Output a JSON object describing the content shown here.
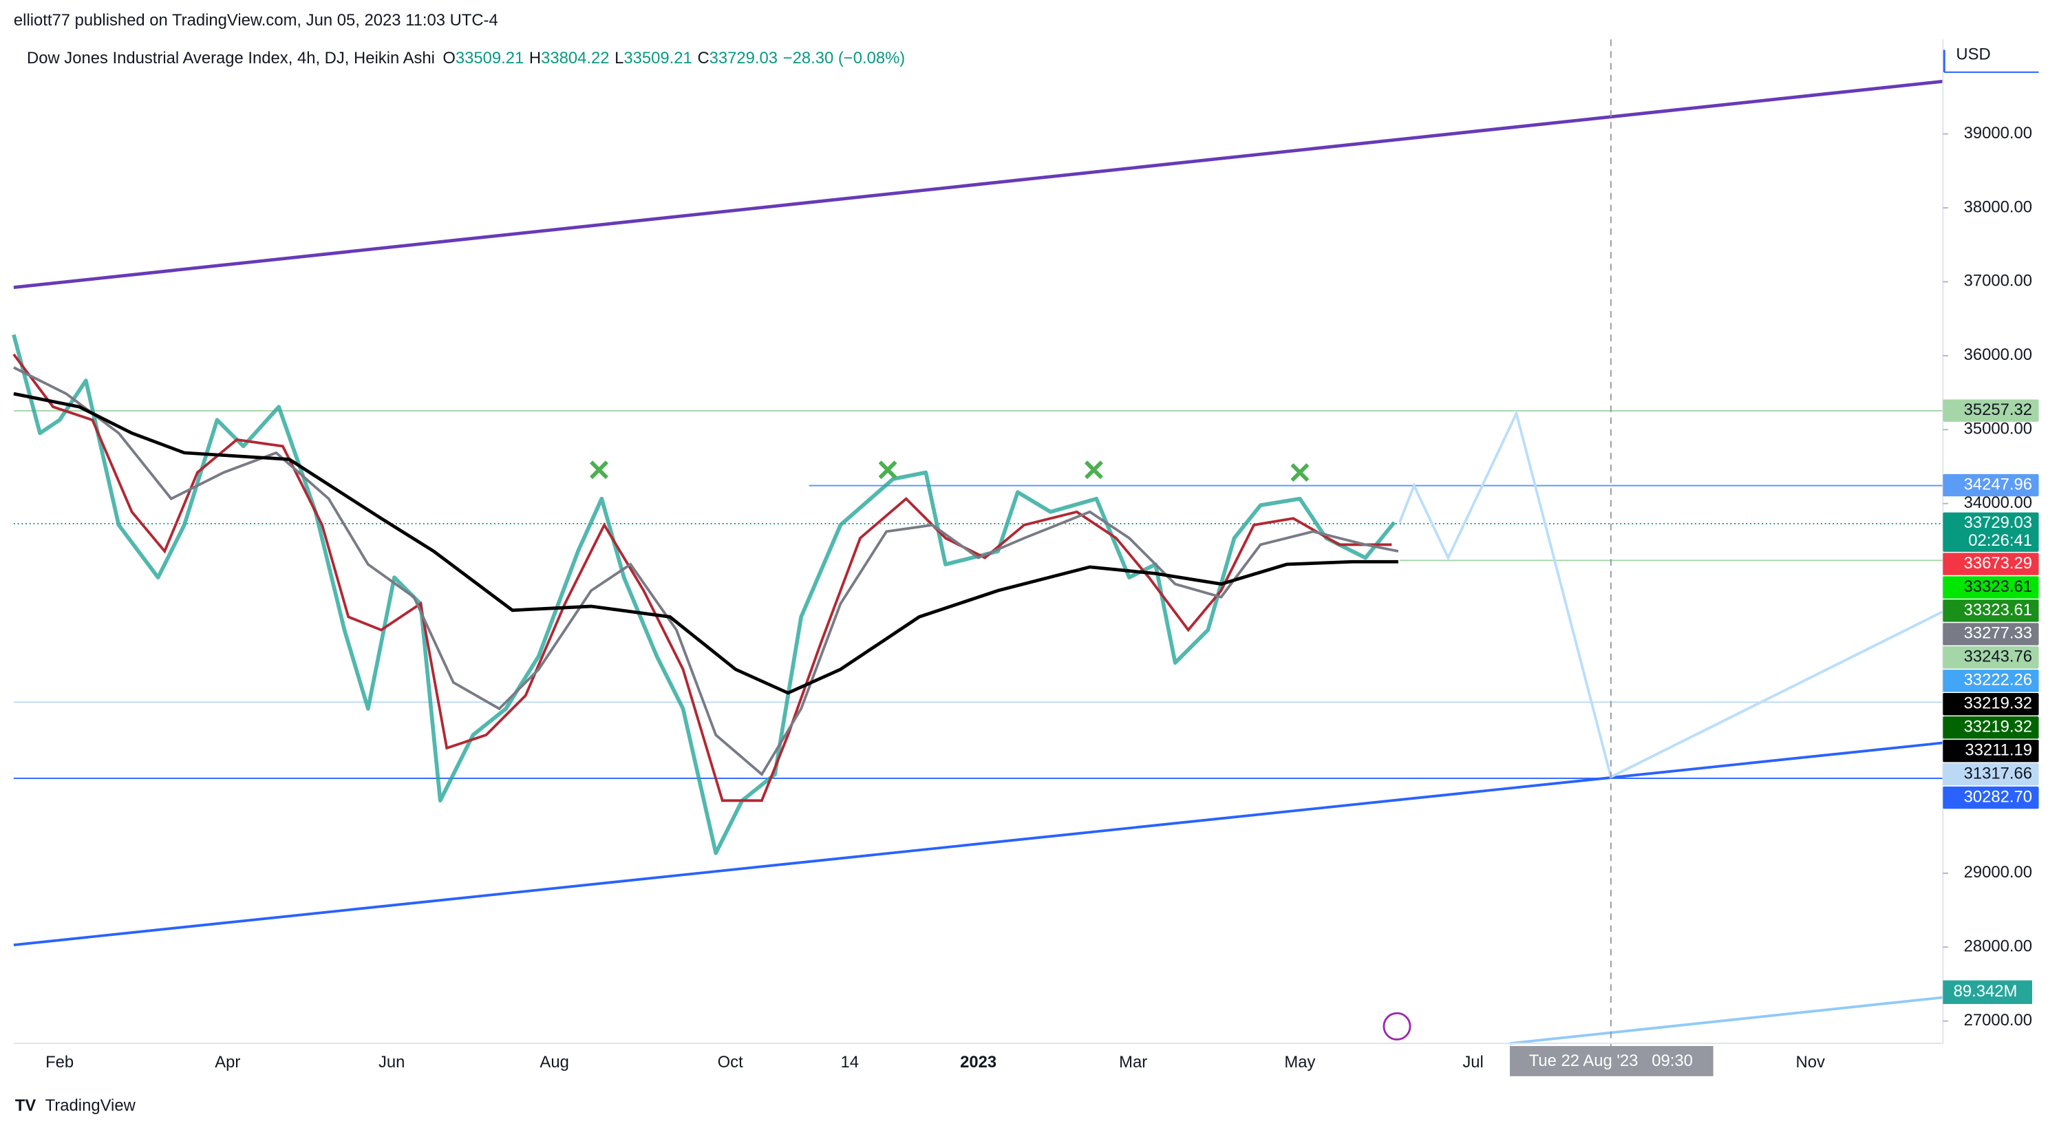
{
  "header": {
    "published": "elliott77 published on TradingView.com, Jun 05, 2023 11:03 UTC-4"
  },
  "legend": {
    "title": "Dow Jones Industrial Average Index, 4h, DJ, Heikin Ashi",
    "items": [
      {
        "key": "O",
        "value": "33509.21"
      },
      {
        "key": "H",
        "value": "33804.22"
      },
      {
        "key": "L",
        "value": "33509.21"
      },
      {
        "key": "C",
        "value": "33729.03"
      }
    ],
    "change": "−28.30 (−0.08%)"
  },
  "price_axis": {
    "currency": "USD",
    "ticks": [
      {
        "value": 39000,
        "label": "39000.00"
      },
      {
        "value": 38000,
        "label": "38000.00"
      },
      {
        "value": 37000,
        "label": "37000.00"
      },
      {
        "value": 36000,
        "label": "36000.00"
      },
      {
        "value": 35000,
        "label": "35000.00"
      },
      {
        "value": 34000,
        "label": "34000.00"
      },
      {
        "value": 29000,
        "label": "29000.00"
      },
      {
        "value": 28000,
        "label": "28000.00"
      },
      {
        "value": 27000,
        "label": "27000.00"
      }
    ],
    "tags": [
      {
        "value": 35257.32,
        "label": "35257.32",
        "color": "#a5d6a7",
        "text": "#131722"
      },
      {
        "value": 34247.96,
        "label": "34247.96",
        "color": "#5b9cf6",
        "text": "#ffffff"
      },
      {
        "value": 33729.03,
        "label": "33729.03",
        "color": "#089981",
        "text": "#ffffff",
        "countdown": "02:26:41"
      },
      {
        "value": 33673.29,
        "label": "33673.29",
        "color": "#f23645",
        "text": "#ffffff"
      },
      {
        "value": 33323.61,
        "label": "33323.61",
        "color": "#00e600",
        "text": "#131722"
      },
      {
        "value": 33323.61,
        "label": "33323.61",
        "color": "#1a8f1a",
        "text": "#ffffff"
      },
      {
        "value": 33277.33,
        "label": "33277.33",
        "color": "#787b86",
        "text": "#ffffff"
      },
      {
        "value": 33243.76,
        "label": "33243.76",
        "color": "#a5d6a7",
        "text": "#131722"
      },
      {
        "value": 33222.26,
        "label": "33222.26",
        "color": "#42a5f5",
        "text": "#ffffff"
      },
      {
        "value": 33219.32,
        "label": "33219.32",
        "color": "#000000",
        "text": "#ffffff"
      },
      {
        "value": 33219.32,
        "label": "33219.32",
        "color": "#006400",
        "text": "#ffffff"
      },
      {
        "value": 33211.19,
        "label": "33211.19",
        "color": "#000000",
        "text": "#ffffff"
      },
      {
        "value": 31317.66,
        "label": "31317.66",
        "color": "#bbd9f5",
        "text": "#131722"
      },
      {
        "value": 30282.7,
        "label": "30282.70",
        "color": "#2962ff",
        "text": "#ffffff"
      }
    ],
    "volume_tag": "89.342M"
  },
  "time_axis": {
    "labels": [
      "Feb",
      "Apr",
      "Jun",
      "Aug",
      "Oct",
      "14",
      "2023",
      "Mar",
      "May",
      "Jul",
      "Nov"
    ],
    "crosshair": "Tue 22 Aug '23   09:30"
  },
  "footer": {
    "brand": "TradingView"
  }
}
